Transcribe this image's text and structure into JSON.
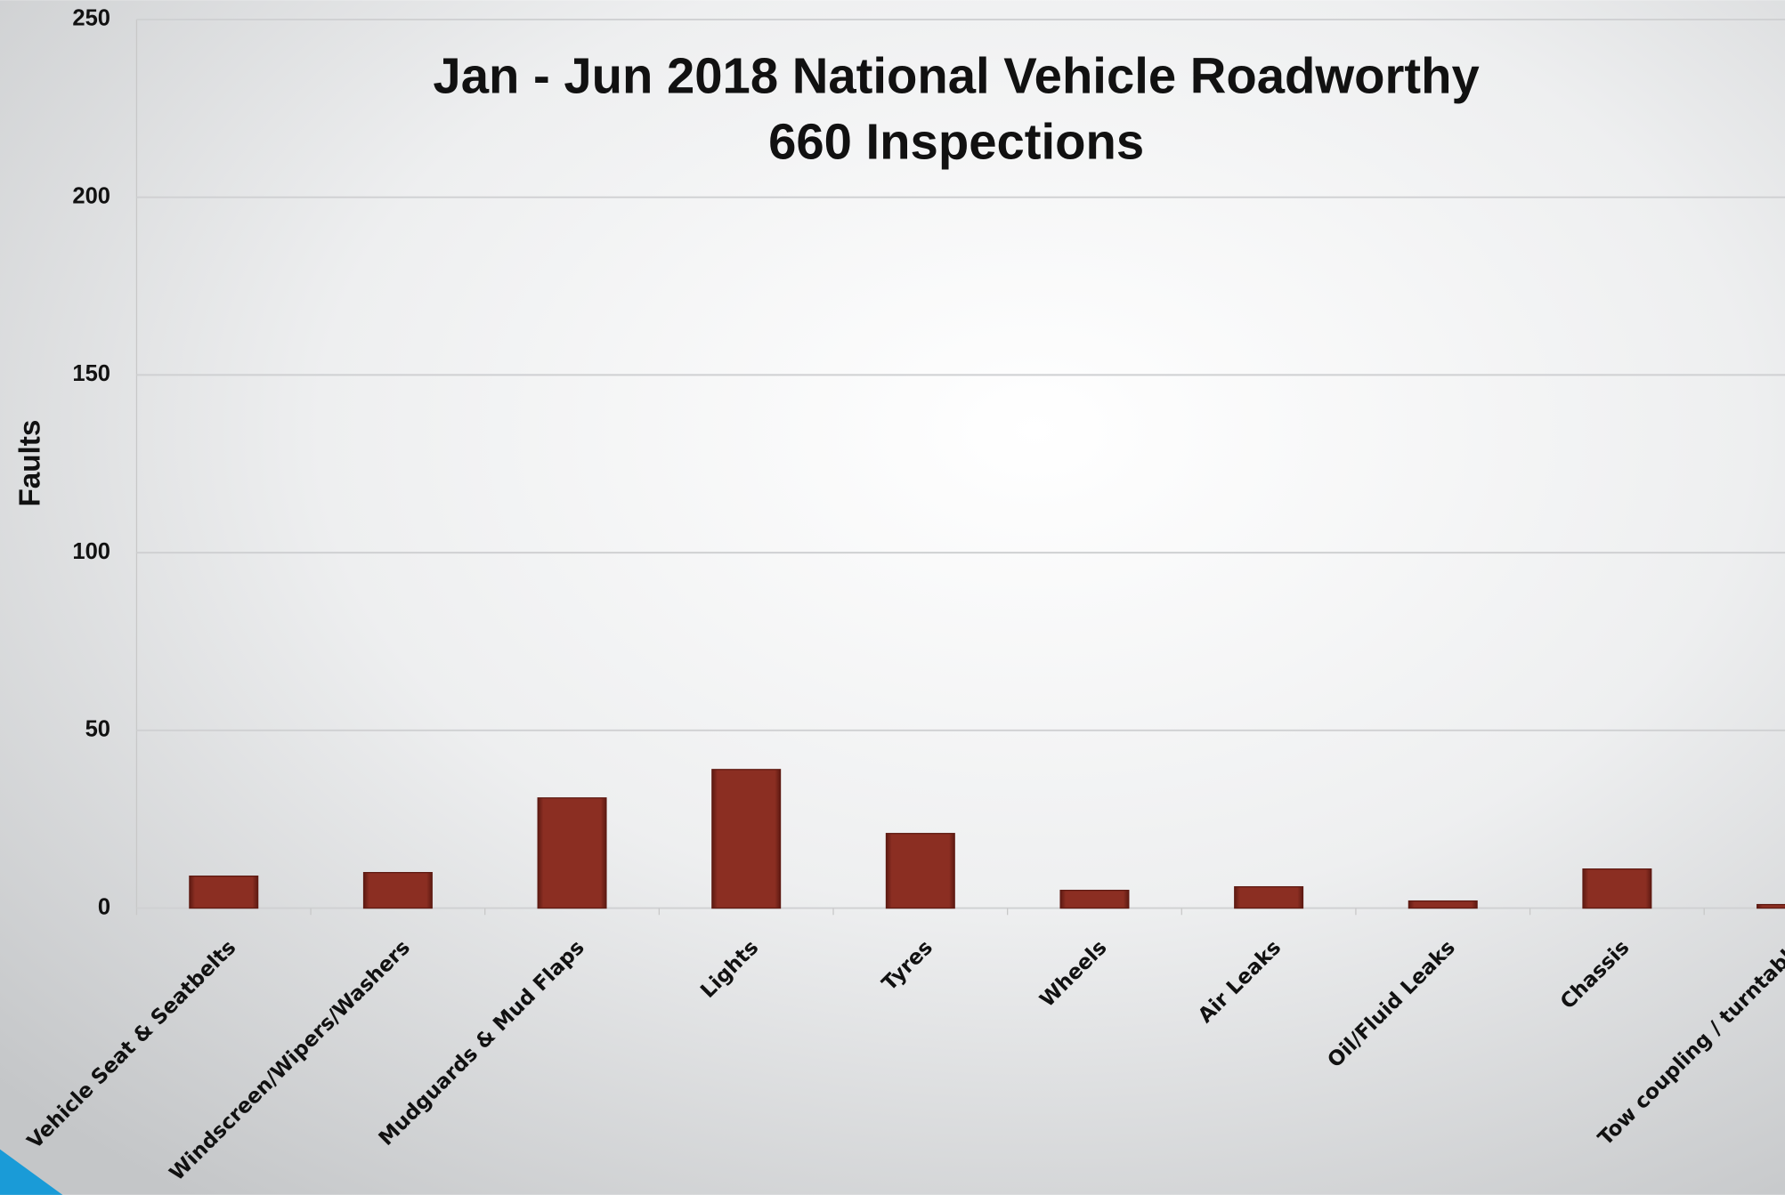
{
  "chart_data": {
    "type": "bar",
    "title": "Jan - Jun 2018 National Vehicle Roadworthy",
    "subtitle": "660 Inspections",
    "y_label": "Faults",
    "categories": [
      "Vehicle Seat & Seatbelts",
      "Windscreen/Wipers/Washers",
      "Mudguards & Mud Flaps",
      "Lights",
      "Tyres",
      "Wheels",
      "Air Leaks",
      "Oil/Fluid Leaks",
      "Chassis",
      "Tow coupling / turntable"
    ],
    "values": [
      9,
      10,
      31,
      39,
      21,
      5,
      6,
      2,
      11,
      1
    ],
    "color": "#8b2e22",
    "ylim": [
      0,
      250
    ],
    "yticks": [
      0,
      50,
      100,
      150,
      200,
      250
    ],
    "grid": true
  }
}
